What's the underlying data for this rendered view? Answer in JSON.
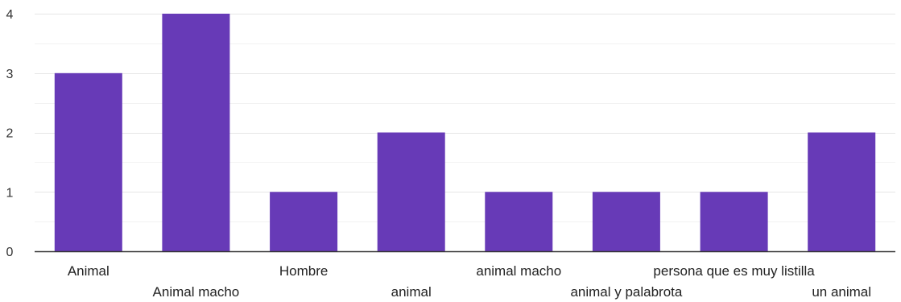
{
  "chart_data": {
    "type": "bar",
    "categories": [
      "Animal",
      "Animal macho",
      "Hombre",
      "animal",
      "animal macho",
      "animal y palabrota",
      "persona que es muy listilla",
      "un animal"
    ],
    "values": [
      3,
      4,
      1,
      2,
      1,
      1,
      1,
      2
    ],
    "ylim": [
      0,
      4
    ],
    "yticks": [
      0,
      1,
      2,
      3,
      4
    ],
    "title": "",
    "xlabel": "",
    "ylabel": "",
    "grid": true,
    "bar_color": "#673ab7",
    "gridline_color": "#e6e6e6",
    "minor_gridline_color": "#f2f2f2",
    "axis_color": "#333333"
  }
}
